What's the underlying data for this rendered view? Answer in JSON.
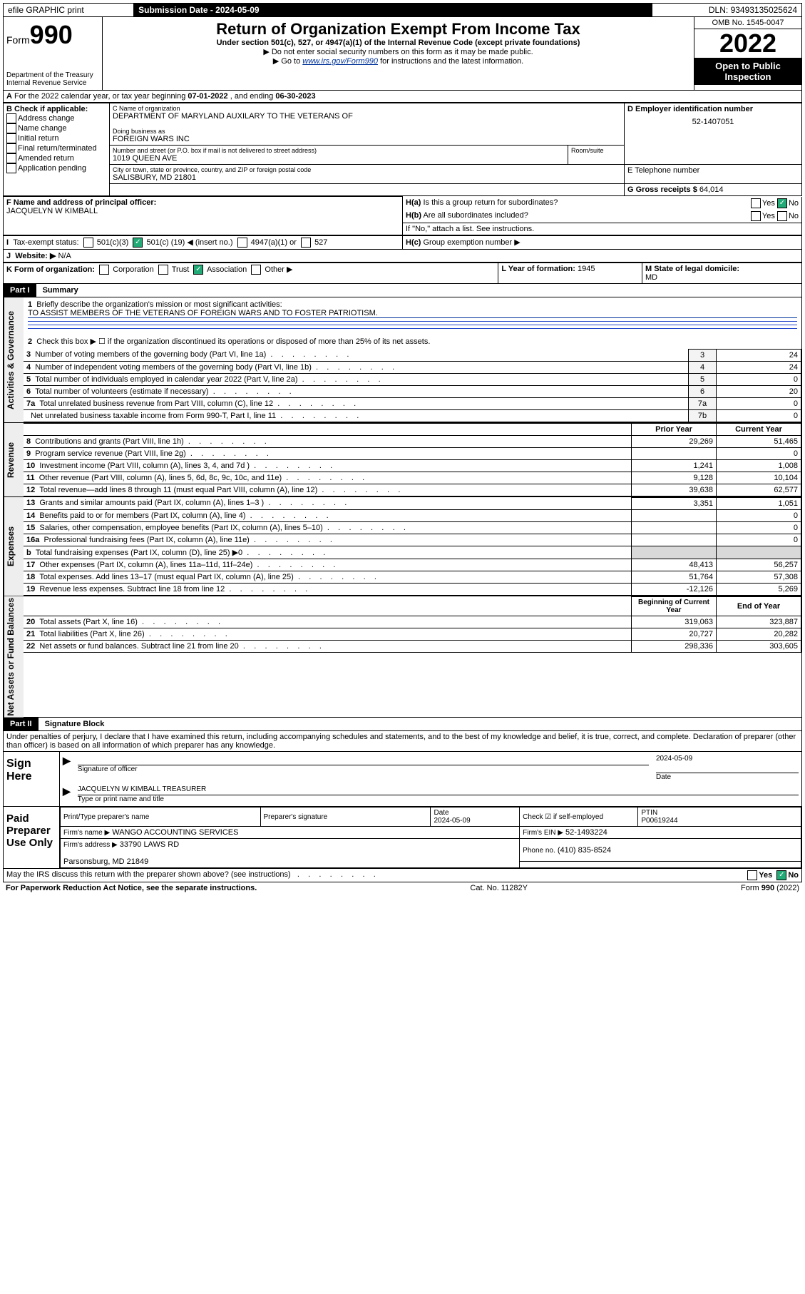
{
  "topbar": {
    "efile": "efile GRAPHIC print",
    "submission_label": "Submission Date - 2024-05-09",
    "dln": "DLN: 93493135025624"
  },
  "header": {
    "form_label": "Form",
    "form_number": "990",
    "dept": "Department of the Treasury",
    "irs": "Internal Revenue Service",
    "title": "Return of Organization Exempt From Income Tax",
    "sub1": "Under section 501(c), 527, or 4947(a)(1) of the Internal Revenue Code (except private foundations)",
    "sub2": "▶ Do not enter social security numbers on this form as it may be made public.",
    "sub3_pre": "▶ Go to ",
    "sub3_link": "www.irs.gov/Form990",
    "sub3_post": " for instructions and the latest information.",
    "omb": "OMB No. 1545-0047",
    "year": "2022",
    "open": "Open to Public Inspection"
  },
  "A": {
    "text_pre": "For the 2022 calendar year, or tax year beginning ",
    "begin": "07-01-2022",
    "mid": " , and ending ",
    "end": "06-30-2023"
  },
  "B": {
    "label": "B Check if applicable:",
    "opts": [
      "Address change",
      "Name change",
      "Initial return",
      "Final return/terminated",
      "Amended return",
      "Application pending"
    ]
  },
  "C": {
    "name_label": "C Name of organization",
    "name": "DEPARTMENT OF MARYLAND AUXILARY TO THE VETERANS OF",
    "dba_label": "Doing business as",
    "dba": "FOREIGN WARS INC",
    "street_label": "Number and street (or P.O. box if mail is not delivered to street address)",
    "room_label": "Room/suite",
    "street": "1019 QUEEN AVE",
    "city_label": "City or town, state or province, country, and ZIP or foreign postal code",
    "city": "SALISBURY, MD  21801"
  },
  "D": {
    "label": "D Employer identification number",
    "value": "52-1407051"
  },
  "E": {
    "label": "E Telephone number"
  },
  "G": {
    "label": "G Gross receipts $",
    "value": "64,014"
  },
  "F": {
    "label": "F Name and address of principal officer:",
    "name": "JACQUELYN W KIMBALL"
  },
  "H": {
    "a": "Is this a group return for subordinates?",
    "b": "Are all subordinates included?",
    "b_note": "If \"No,\" attach a list. See instructions.",
    "c": "Group exemption number ▶",
    "yes": "Yes",
    "no": "No"
  },
  "I": {
    "label": "Tax-exempt status:",
    "o1": "501(c)(3)",
    "o2_pre": "501(c) (",
    "o2_num": "19",
    "o2_post": ") ◀ (insert no.)",
    "o3": "4947(a)(1) or",
    "o4": "527"
  },
  "J": {
    "label": "Website: ▶",
    "value": "N/A"
  },
  "K": {
    "label": "K Form of organization:",
    "o1": "Corporation",
    "o2": "Trust",
    "o3": "Association",
    "o4": "Other ▶"
  },
  "L": {
    "label": "L Year of formation:",
    "value": "1945"
  },
  "M": {
    "label": "M State of legal domicile:",
    "value": "MD"
  },
  "part1": {
    "hdr": "Part I",
    "title": "Summary",
    "l1_label": "Briefly describe the organization's mission or most significant activities:",
    "l1_text": "TO ASSIST MEMBERS OF THE VETERANS OF FOREIGN WARS AND TO FOSTER PATRIOTISM.",
    "l2": "Check this box ▶ ☐ if the organization discontinued its operations or disposed of more than 25% of its net assets.",
    "rows_gov": [
      {
        "n": "3",
        "t": "Number of voting members of the governing body (Part VI, line 1a)",
        "b": "3",
        "v": "24"
      },
      {
        "n": "4",
        "t": "Number of independent voting members of the governing body (Part VI, line 1b)",
        "b": "4",
        "v": "24"
      },
      {
        "n": "5",
        "t": "Total number of individuals employed in calendar year 2022 (Part V, line 2a)",
        "b": "5",
        "v": "0"
      },
      {
        "n": "6",
        "t": "Total number of volunteers (estimate if necessary)",
        "b": "6",
        "v": "20"
      },
      {
        "n": "7a",
        "t": "Total unrelated business revenue from Part VIII, column (C), line 12",
        "b": "7a",
        "v": "0"
      },
      {
        "n": "",
        "t": "Net unrelated business taxable income from Form 990-T, Part I, line 11",
        "b": "7b",
        "v": "0"
      }
    ],
    "col_prior": "Prior Year",
    "col_current": "Current Year",
    "rows_rev": [
      {
        "n": "8",
        "t": "Contributions and grants (Part VIII, line 1h)",
        "p": "29,269",
        "c": "51,465"
      },
      {
        "n": "9",
        "t": "Program service revenue (Part VIII, line 2g)",
        "p": "",
        "c": "0"
      },
      {
        "n": "10",
        "t": "Investment income (Part VIII, column (A), lines 3, 4, and 7d )",
        "p": "1,241",
        "c": "1,008"
      },
      {
        "n": "11",
        "t": "Other revenue (Part VIII, column (A), lines 5, 6d, 8c, 9c, 10c, and 11e)",
        "p": "9,128",
        "c": "10,104"
      },
      {
        "n": "12",
        "t": "Total revenue—add lines 8 through 11 (must equal Part VIII, column (A), line 12)",
        "p": "39,638",
        "c": "62,577"
      }
    ],
    "rows_exp": [
      {
        "n": "13",
        "t": "Grants and similar amounts paid (Part IX, column (A), lines 1–3 )",
        "p": "3,351",
        "c": "1,051"
      },
      {
        "n": "14",
        "t": "Benefits paid to or for members (Part IX, column (A), line 4)",
        "p": "",
        "c": "0"
      },
      {
        "n": "15",
        "t": "Salaries, other compensation, employee benefits (Part IX, column (A), lines 5–10)",
        "p": "",
        "c": "0"
      },
      {
        "n": "16a",
        "t": "Professional fundraising fees (Part IX, column (A), line 11e)",
        "p": "",
        "c": "0"
      },
      {
        "n": "b",
        "t": "Total fundraising expenses (Part IX, column (D), line 25) ▶0",
        "p": "GRAY",
        "c": "GRAY"
      },
      {
        "n": "17",
        "t": "Other expenses (Part IX, column (A), lines 11a–11d, 11f–24e)",
        "p": "48,413",
        "c": "56,257"
      },
      {
        "n": "18",
        "t": "Total expenses. Add lines 13–17 (must equal Part IX, column (A), line 25)",
        "p": "51,764",
        "c": "57,308"
      },
      {
        "n": "19",
        "t": "Revenue less expenses. Subtract line 18 from line 12",
        "p": "-12,126",
        "c": "5,269"
      }
    ],
    "col_begin": "Beginning of Current Year",
    "col_end": "End of Year",
    "rows_net": [
      {
        "n": "20",
        "t": "Total assets (Part X, line 16)",
        "p": "319,063",
        "c": "323,887"
      },
      {
        "n": "21",
        "t": "Total liabilities (Part X, line 26)",
        "p": "20,727",
        "c": "20,282"
      },
      {
        "n": "22",
        "t": "Net assets or fund balances. Subtract line 21 from line 20",
        "p": "298,336",
        "c": "303,605"
      }
    ],
    "side_gov": "Activities & Governance",
    "side_rev": "Revenue",
    "side_exp": "Expenses",
    "side_net": "Net Assets or Fund Balances"
  },
  "part2": {
    "hdr": "Part II",
    "title": "Signature Block",
    "decl": "Under penalties of perjury, I declare that I have examined this return, including accompanying schedules and statements, and to the best of my knowledge and belief, it is true, correct, and complete. Declaration of preparer (other than officer) is based on all information of which preparer has any knowledge."
  },
  "sign": {
    "here_label": "Sign Here",
    "sig_officer": "Signature of officer",
    "date_label": "Date",
    "date": "2024-05-09",
    "name": "JACQUELYN W KIMBALL  TREASURER",
    "name_label": "Type or print name and title"
  },
  "paid": {
    "label": "Paid Preparer Use Only",
    "col1": "Print/Type preparer's name",
    "col2": "Preparer's signature",
    "col3": "Date",
    "col3_val": "2024-05-09",
    "col4": "Check ☑ if self-employed",
    "col5": "PTIN",
    "ptin": "P00619244",
    "firm_name_label": "Firm's name    ▶",
    "firm_name": "WANGO ACCOUNTING SERVICES",
    "firm_ein_label": "Firm's EIN ▶",
    "firm_ein": "52-1493224",
    "firm_addr_label": "Firm's address ▶",
    "firm_addr1": "33790 LAWS RD",
    "firm_addr2": "Parsonsburg, MD  21849",
    "phone_label": "Phone no.",
    "phone": "(410) 835-8524"
  },
  "bottom": {
    "discuss": "May the IRS discuss this return with the preparer shown above? (see instructions)",
    "paperwork": "For Paperwork Reduction Act Notice, see the separate instructions.",
    "cat": "Cat. No. 11282Y",
    "form": "Form 990 (2022)"
  }
}
